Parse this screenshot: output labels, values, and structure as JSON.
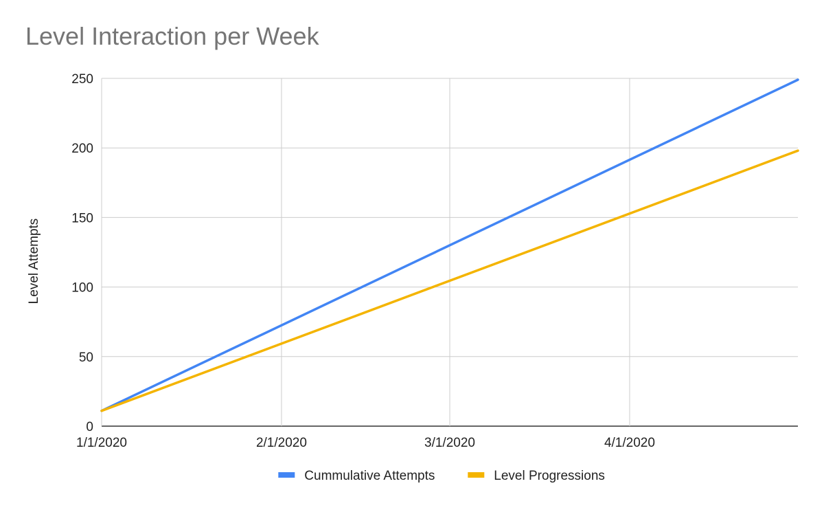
{
  "chart_data": {
    "type": "line",
    "title": "Level Interaction per Week",
    "xlabel": "",
    "ylabel": "Level Attempts",
    "x_type": "date",
    "x_ticks": [
      "1/1/2020",
      "2/1/2020",
      "3/1/2020",
      "4/1/2020"
    ],
    "xlim": [
      "1/1/2020",
      "4/30/2020"
    ],
    "ylim": [
      0,
      250
    ],
    "y_ticks": [
      0,
      50,
      100,
      150,
      200,
      250
    ],
    "grid": true,
    "legend": "bottom",
    "series": [
      {
        "name": "Cummulative Attempts",
        "color": "#4285f4",
        "points": [
          {
            "x": "1/1/2020",
            "y": 11
          },
          {
            "x": "4/30/2020",
            "y": 249
          }
        ]
      },
      {
        "name": "Level Progressions",
        "color": "#f4b400",
        "points": [
          {
            "x": "1/1/2020",
            "y": 11
          },
          {
            "x": "4/30/2020",
            "y": 198
          }
        ]
      }
    ]
  }
}
